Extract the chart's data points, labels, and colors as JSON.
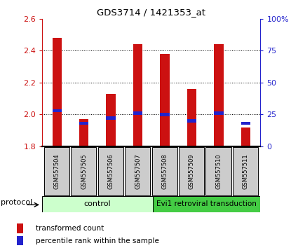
{
  "title": "GDS3714 / 1421353_at",
  "samples": [
    "GSM557504",
    "GSM557505",
    "GSM557506",
    "GSM557507",
    "GSM557508",
    "GSM557509",
    "GSM557510",
    "GSM557511"
  ],
  "transformed_counts": [
    2.48,
    1.97,
    2.13,
    2.44,
    2.38,
    2.16,
    2.44,
    1.92
  ],
  "percentile_ranks": [
    28,
    18,
    22,
    26,
    25,
    20,
    26,
    18
  ],
  "bar_bottom": 1.8,
  "ylim": [
    1.8,
    2.6
  ],
  "y2lim": [
    0,
    100
  ],
  "y2ticks": [
    0,
    25,
    50,
    75,
    100
  ],
  "y2ticklabels": [
    "0",
    "25",
    "50",
    "75",
    "100%"
  ],
  "yticks": [
    1.8,
    2.0,
    2.2,
    2.4,
    2.6
  ],
  "bar_color": "#cc1111",
  "percentile_color": "#2222cc",
  "bar_width": 0.35,
  "control_label": "control",
  "evi1_label": "Evi1 retroviral transduction",
  "protocol_label": "protocol",
  "legend_items": [
    "transformed count",
    "percentile rank within the sample"
  ],
  "control_bg": "#ccffcc",
  "evi1_bg": "#44cc44",
  "xlabel_bg": "#cccccc",
  "y_label_color": "#cc1111",
  "y2_label_color": "#2222cc",
  "grid_yticks": [
    2.0,
    2.2,
    2.4
  ],
  "n_control": 4
}
